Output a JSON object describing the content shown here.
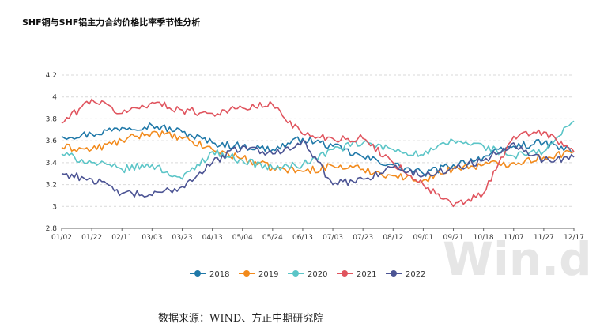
{
  "title": "SHF铜与SHF铝主力合约价格比率季节性分析",
  "source": "数据来源：WIND、方正中期研究院",
  "watermark": "Win.d",
  "chart_data": {
    "type": "line",
    "title": "SHF铜与SHF铝主力合约价格比率季节性分析",
    "xlabel": "",
    "ylabel": "",
    "ylim": [
      2.8,
      4.2
    ],
    "yticks": [
      2.8,
      3,
      3.2,
      3.4,
      3.6,
      3.8,
      4,
      4.2
    ],
    "grid": "horizontal-dashed",
    "legend_position": "bottom-center",
    "categories": [
      "01/02",
      "01/22",
      "02/11",
      "03/03",
      "03/23",
      "04/13",
      "05/04",
      "05/24",
      "06/13",
      "07/03",
      "07/23",
      "08/12",
      "09/01",
      "09/21",
      "10/18",
      "11/07",
      "11/27",
      "12/17"
    ],
    "series": [
      {
        "name": "2018",
        "color": "#1f78a8",
        "values": [
          3.64,
          3.66,
          3.72,
          3.74,
          3.68,
          3.58,
          3.55,
          3.52,
          3.62,
          3.55,
          3.45,
          3.38,
          3.3,
          3.38,
          3.45,
          3.55,
          3.58,
          3.5
        ]
      },
      {
        "name": "2019",
        "color": "#f28a1c",
        "values": [
          3.54,
          3.52,
          3.6,
          3.68,
          3.62,
          3.52,
          3.44,
          3.35,
          3.32,
          3.37,
          3.34,
          3.28,
          3.24,
          3.35,
          3.38,
          3.4,
          3.45,
          3.5
        ]
      },
      {
        "name": "2020",
        "color": "#5bc5c7",
        "values": [
          3.48,
          3.4,
          3.34,
          3.38,
          3.25,
          3.5,
          3.42,
          3.35,
          3.38,
          3.52,
          3.58,
          3.52,
          3.47,
          3.6,
          3.55,
          3.46,
          3.5,
          3.78
        ]
      },
      {
        "name": "2021",
        "color": "#e0545e",
        "values": [
          3.76,
          3.98,
          3.85,
          3.95,
          3.88,
          3.85,
          3.9,
          3.93,
          3.66,
          3.62,
          3.62,
          3.4,
          3.2,
          3.0,
          3.12,
          3.64,
          3.68,
          3.5
        ]
      },
      {
        "name": "2022",
        "color": "#4c5494",
        "values": [
          3.3,
          3.25,
          3.12,
          3.1,
          3.18,
          3.4,
          3.55,
          3.48,
          3.6,
          3.2,
          3.25,
          3.36,
          3.28,
          3.35,
          3.42,
          3.58,
          3.42,
          3.45
        ]
      }
    ]
  }
}
